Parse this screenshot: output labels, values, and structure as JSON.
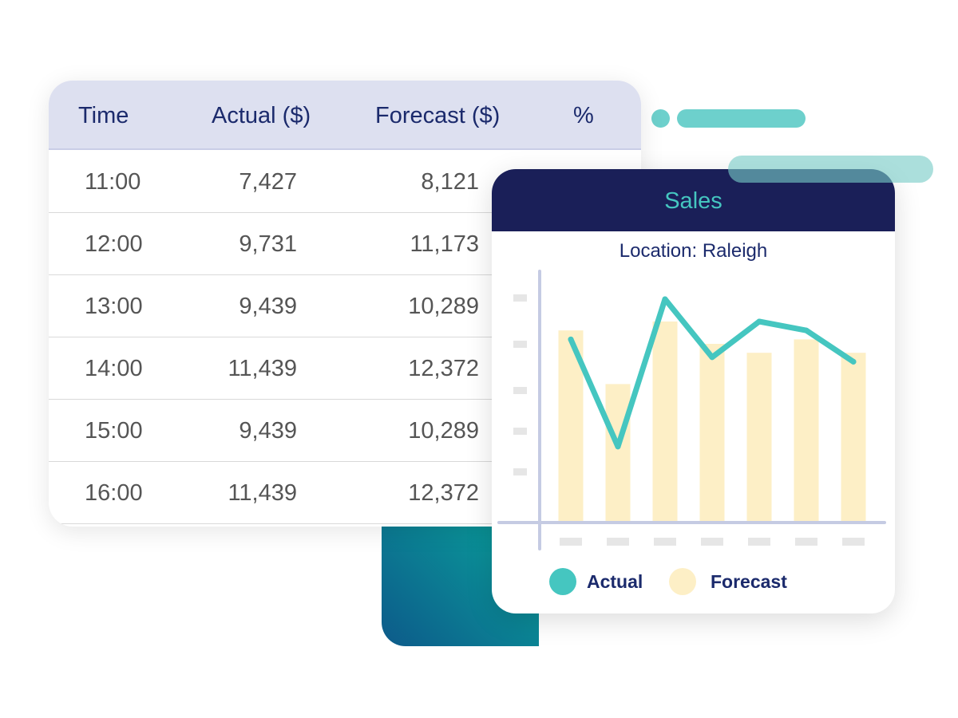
{
  "table": {
    "headers": [
      "Time",
      "Actual ($)",
      "Forecast ($)",
      "%"
    ],
    "rows": [
      {
        "time": "11:00",
        "actual": "7,427",
        "forecast": "8,121"
      },
      {
        "time": "12:00",
        "actual": "9,731",
        "forecast": "11,173"
      },
      {
        "time": "13:00",
        "actual": "9,439",
        "forecast": "10,289"
      },
      {
        "time": "14:00",
        "actual": "11,439",
        "forecast": "12,372"
      },
      {
        "time": "15:00",
        "actual": "9,439",
        "forecast": "10,289"
      },
      {
        "time": "16:00",
        "actual": "11,439",
        "forecast": "12,372"
      }
    ]
  },
  "chart_card": {
    "title": "Sales",
    "subtitle": "Location: Raleigh"
  },
  "chart_data": {
    "type": "bar",
    "title": "Sales",
    "subtitle": "Location: Raleigh",
    "categories": [
      "",
      "",
      "",
      "",
      "",
      "",
      ""
    ],
    "ylim": [
      0,
      6
    ],
    "grid": false,
    "legend": "bottom",
    "series": [
      {
        "name": "Forecast",
        "type": "bar",
        "color": "#fdefc6",
        "values": [
          4.3,
          3.1,
          4.5,
          4.0,
          3.8,
          4.1,
          3.8
        ]
      },
      {
        "name": "Actual",
        "type": "line",
        "color": "#45c6c0",
        "values": [
          4.1,
          1.7,
          5.0,
          3.7,
          4.5,
          4.3,
          3.6
        ]
      }
    ]
  },
  "legend": {
    "actual": "Actual",
    "forecast": "Forecast"
  },
  "colors": {
    "navy": "#1a1f58",
    "teal": "#45c6c0",
    "forecast": "#fdefc6",
    "header_bg": "#dde0f0"
  }
}
